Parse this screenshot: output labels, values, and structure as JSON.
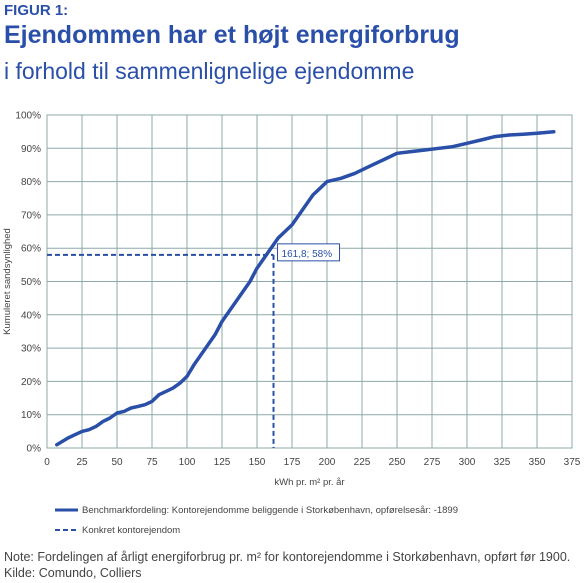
{
  "figure_label": "FIGUR 1:",
  "title": "Ejendommen har et højt energiforbrug",
  "subtitle": "i forhold til sammenlignelige ejendomme",
  "note": "Note: Fordelingen af årligt energiforbrug pr. m² for kontorejendomme i Storkøbenhavn, opført før 1900. Kilde: Comundo, Colliers",
  "colors": {
    "series": "#2a4fa8",
    "grid": "#8ea8a8",
    "text": "#444444"
  },
  "chart_data": {
    "type": "line",
    "xlabel": "kWh pr. m² pr. år",
    "ylabel": "Kumuleret sandsynlighed",
    "xlim": [
      0,
      375
    ],
    "ylim": [
      0,
      100
    ],
    "x_ticks": [
      "0",
      "25",
      "50",
      "75",
      "100",
      "125",
      "150",
      "175",
      "200",
      "225",
      "250",
      "275",
      "300",
      "325",
      "350",
      "375"
    ],
    "y_ticks": [
      "0%",
      "10%",
      "20%",
      "30%",
      "40%",
      "50%",
      "60%",
      "70%",
      "80%",
      "90%",
      "100%"
    ],
    "grid": true,
    "legend_position": "bottom",
    "series": [
      {
        "name": "Benchmarkfordeling: Kontorejendomme beliggende i Storkøbenhavn, opførelsesår: -1899",
        "style": "solid",
        "x": [
          7,
          15,
          20,
          25,
          30,
          35,
          40,
          45,
          50,
          55,
          60,
          65,
          70,
          75,
          80,
          85,
          90,
          95,
          100,
          105,
          110,
          115,
          120,
          125,
          130,
          135,
          140,
          145,
          150,
          155,
          160,
          165,
          170,
          175,
          180,
          185,
          190,
          195,
          200,
          210,
          220,
          230,
          240,
          250,
          260,
          270,
          280,
          290,
          300,
          310,
          320,
          330,
          340,
          350,
          362
        ],
        "y": [
          1,
          3,
          4,
          5,
          5.5,
          6.5,
          8,
          9,
          10.5,
          11,
          12,
          12.5,
          13,
          14,
          16,
          17,
          18,
          19.5,
          21.5,
          25,
          28,
          31,
          34,
          38,
          41,
          44,
          47,
          50,
          54,
          57,
          60,
          63,
          65,
          67,
          70,
          73,
          76,
          78,
          80,
          81,
          82.5,
          84.5,
          86.5,
          88.5,
          89,
          89.5,
          90,
          90.5,
          91.5,
          92.5,
          93.5,
          94,
          94.2,
          94.5,
          95
        ]
      },
      {
        "name": "Konkret kontorejendom",
        "style": "dashed",
        "x": 161.8,
        "y": 58
      }
    ],
    "annotations": [
      {
        "text": "161,8; 58%",
        "x": 161.8,
        "y": 58
      }
    ]
  }
}
